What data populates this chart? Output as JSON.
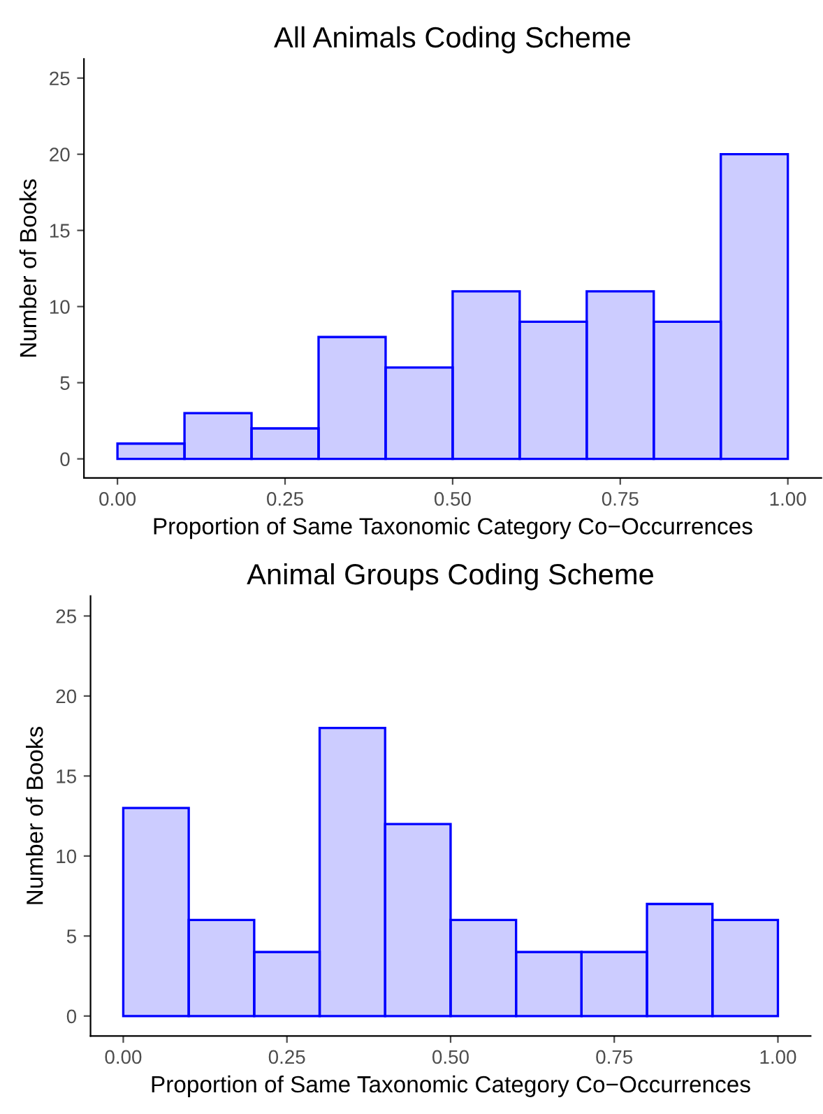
{
  "chart_data": [
    {
      "type": "histogram",
      "title": "All Animals Coding Scheme",
      "xlabel": "Proportion of Same Taxonomic Category Co−Occurrences",
      "ylabel": "Number of Books",
      "color": "#0000ff",
      "bins": [
        0,
        0.1,
        0.2,
        0.3,
        0.4,
        0.5,
        0.6,
        0.7,
        0.8,
        0.9,
        1.0
      ],
      "values": [
        1,
        3,
        2,
        8,
        6,
        11,
        9,
        11,
        9,
        20
      ],
      "xlim": [
        -0.05,
        1.05
      ],
      "xticks": [
        {
          "value": 0,
          "label": "0.00"
        },
        {
          "value": 0.25,
          "label": "0.25"
        },
        {
          "value": 0.5,
          "label": "0.50"
        },
        {
          "value": 0.75,
          "label": "0.75"
        },
        {
          "value": 1,
          "label": "1.00"
        }
      ],
      "ylim": [
        -1.25,
        26.25
      ],
      "yticks": [
        0,
        5,
        10,
        15,
        20,
        25
      ],
      "grid": false,
      "legend": false
    },
    {
      "type": "histogram",
      "title": "Animal Groups Coding Scheme",
      "xlabel": "Proportion of Same Taxonomic Category Co−Occurrences",
      "ylabel": "Number of Books",
      "color": "#0000ff",
      "bins": [
        0,
        0.1,
        0.2,
        0.3,
        0.4,
        0.5,
        0.6,
        0.7,
        0.8,
        0.9,
        1.0
      ],
      "values": [
        13,
        6,
        4,
        18,
        12,
        6,
        4,
        4,
        7,
        6
      ],
      "xlim": [
        -0.05,
        1.05
      ],
      "xticks": [
        {
          "value": 0,
          "label": "0.00"
        },
        {
          "value": 0.25,
          "label": "0.25"
        },
        {
          "value": 0.5,
          "label": "0.50"
        },
        {
          "value": 0.75,
          "label": "0.75"
        },
        {
          "value": 1,
          "label": "1.00"
        }
      ],
      "ylim": [
        -1.25,
        26.25
      ],
      "yticks": [
        0,
        5,
        10,
        15,
        20,
        25
      ],
      "grid": false,
      "legend": false
    }
  ]
}
